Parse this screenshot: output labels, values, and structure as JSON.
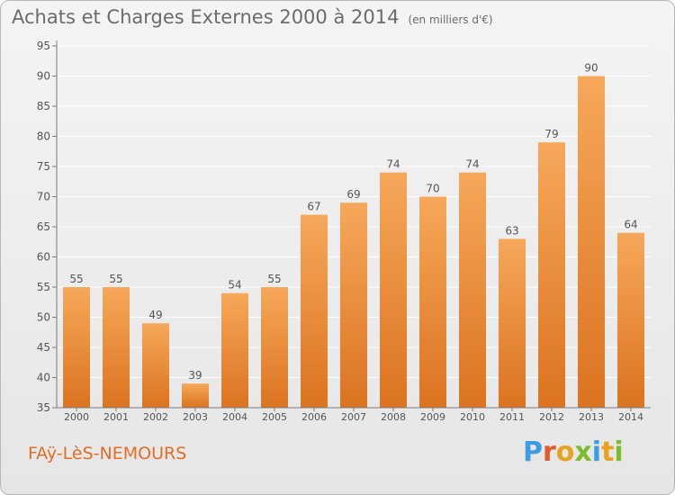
{
  "title": "Achats et Charges Externes 2000 à 2014",
  "unit": "(en milliers d'€)",
  "commune": "FAÿ-LèS-NEMOURS",
  "logo_text": "Proxiti",
  "logo_colors": [
    "#3d9de0",
    "#e4592a",
    "#e8a21c",
    "#7cbd2c",
    "#3d9de0",
    "#e8a21c",
    "#7cbd2c"
  ],
  "colors": {
    "bar_top": "#f6a85a",
    "bar_bottom": "#db7320",
    "axis": "#7a7a7a",
    "grid": "#ffffff",
    "text": "#555555"
  },
  "chart_data": {
    "type": "bar",
    "categories": [
      "2000",
      "2001",
      "2002",
      "2003",
      "2004",
      "2005",
      "2006",
      "2007",
      "2008",
      "2009",
      "2010",
      "2011",
      "2012",
      "2013",
      "2014"
    ],
    "values": [
      55,
      55,
      49,
      39,
      54,
      55,
      67,
      69,
      74,
      70,
      74,
      63,
      79,
      90,
      64
    ],
    "ylim": [
      35,
      95
    ],
    "yticks": [
      35,
      40,
      45,
      50,
      55,
      60,
      65,
      70,
      75,
      80,
      85,
      90,
      95
    ],
    "grid": true,
    "title": "Achats et Charges Externes 2000 à 2014",
    "xlabel": "",
    "ylabel": ""
  }
}
